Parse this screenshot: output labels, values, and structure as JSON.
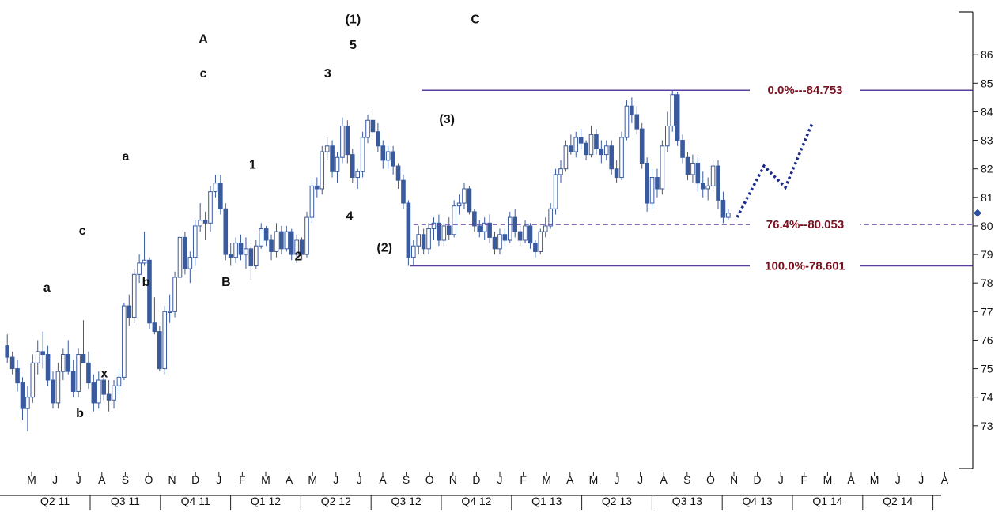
{
  "colors": {
    "candle": "#3a5a9e",
    "fib_line": "#5a3fa0",
    "fib_text": "#7a1020",
    "projection": "#1a2a8c",
    "axis": "#222222"
  },
  "chart_data": {
    "type": "candlestick",
    "title": "",
    "xlabel": "",
    "ylabel": "",
    "ylim": [
      71.5,
      87.5
    ],
    "y_ticks": [
      73,
      74,
      75,
      76,
      77,
      78,
      79,
      80,
      81,
      82,
      83,
      84,
      85,
      86
    ],
    "grid": false,
    "months": [
      "M",
      "J",
      "J",
      "A",
      "S",
      "O",
      "N",
      "D",
      "J",
      "F",
      "M",
      "A",
      "M",
      "J",
      "J",
      "A",
      "S",
      "O",
      "N",
      "D",
      "J",
      "F",
      "M",
      "A",
      "M",
      "J",
      "J",
      "A",
      "S",
      "O",
      "N",
      "D",
      "J",
      "F",
      "M",
      "A",
      "M",
      "J",
      "J",
      "A"
    ],
    "quarters": [
      "Q2 11",
      "Q3 11",
      "Q4 11",
      "Q1 12",
      "Q2 12",
      "Q3 12",
      "Q4 12",
      "Q1 13",
      "Q2 13",
      "Q3 13",
      "Q4 13",
      "Q1 14",
      "Q2 14"
    ],
    "quarter_month_span": [
      [
        0,
        2
      ],
      [
        3,
        5
      ],
      [
        6,
        8
      ],
      [
        9,
        11
      ],
      [
        12,
        14
      ],
      [
        15,
        17
      ],
      [
        18,
        20
      ],
      [
        21,
        23
      ],
      [
        24,
        26
      ],
      [
        27,
        29
      ],
      [
        30,
        32
      ],
      [
        33,
        35
      ],
      [
        36,
        38
      ]
    ],
    "last_value_marker": 80.45,
    "candles_weekly": [
      [
        75.8,
        76.2,
        75.2,
        75.4
      ],
      [
        75.4,
        75.6,
        74.8,
        75.0
      ],
      [
        75.0,
        75.3,
        74.2,
        74.5
      ],
      [
        74.5,
        74.7,
        73.2,
        73.6
      ],
      [
        73.6,
        74.4,
        72.8,
        74.0
      ],
      [
        74.0,
        75.5,
        73.8,
        75.2
      ],
      [
        75.2,
        76.0,
        74.8,
        75.6
      ],
      [
        75.6,
        76.3,
        75.0,
        75.5
      ],
      [
        75.5,
        75.8,
        74.4,
        74.6
      ],
      [
        74.6,
        74.9,
        73.6,
        73.8
      ],
      [
        73.8,
        75.2,
        73.6,
        74.9
      ],
      [
        74.9,
        75.7,
        74.6,
        75.5
      ],
      [
        75.5,
        76.0,
        74.8,
        74.9
      ],
      [
        74.9,
        75.3,
        74.0,
        74.2
      ],
      [
        74.2,
        75.7,
        74.0,
        75.5
      ],
      [
        75.5,
        76.7,
        75.3,
        75.2
      ],
      [
        75.2,
        75.6,
        74.3,
        74.5
      ],
      [
        74.5,
        74.8,
        73.5,
        73.8
      ],
      [
        73.8,
        74.9,
        73.6,
        74.6
      ],
      [
        74.6,
        74.8,
        73.9,
        74.1
      ],
      [
        74.1,
        74.6,
        73.5,
        73.9
      ],
      [
        73.9,
        74.6,
        73.6,
        74.4
      ],
      [
        74.4,
        75.0,
        74.1,
        74.7
      ],
      [
        74.7,
        77.3,
        74.6,
        77.2
      ],
      [
        77.2,
        77.6,
        76.5,
        76.8
      ],
      [
        76.8,
        78.5,
        76.6,
        78.3
      ],
      [
        78.3,
        79.0,
        78.0,
        78.7
      ],
      [
        78.7,
        79.8,
        78.6,
        78.8
      ],
      [
        78.8,
        78.9,
        76.4,
        76.6
      ],
      [
        76.6,
        77.5,
        76.2,
        76.3
      ],
      [
        76.3,
        76.5,
        74.9,
        75.0
      ],
      [
        75.0,
        77.2,
        74.8,
        77.0
      ],
      [
        77.0,
        77.6,
        76.6,
        77.0
      ],
      [
        77.0,
        78.4,
        76.8,
        78.2
      ],
      [
        78.2,
        79.8,
        78.0,
        79.6
      ],
      [
        79.6,
        79.8,
        78.3,
        78.5
      ],
      [
        78.5,
        79.1,
        78.0,
        78.9
      ],
      [
        78.9,
        80.2,
        78.6,
        80.0
      ],
      [
        80.0,
        80.8,
        79.8,
        80.2
      ],
      [
        80.2,
        80.5,
        79.5,
        80.1
      ],
      [
        80.1,
        81.4,
        79.8,
        81.2
      ],
      [
        81.2,
        81.8,
        81.0,
        81.5
      ],
      [
        81.5,
        81.8,
        80.4,
        80.6
      ],
      [
        80.6,
        80.8,
        78.8,
        79.0
      ],
      [
        79.0,
        79.4,
        78.6,
        78.9
      ],
      [
        78.9,
        79.6,
        78.7,
        79.4
      ],
      [
        79.4,
        79.7,
        78.8,
        79.0
      ],
      [
        79.0,
        79.6,
        78.5,
        79.2
      ],
      [
        79.2,
        79.3,
        78.1,
        78.6
      ],
      [
        78.6,
        79.5,
        78.5,
        79.3
      ],
      [
        79.3,
        80.1,
        79.2,
        79.9
      ],
      [
        79.9,
        80.0,
        79.3,
        79.5
      ],
      [
        79.5,
        79.7,
        78.8,
        79.1
      ],
      [
        79.1,
        80.1,
        78.9,
        79.8
      ],
      [
        79.8,
        80.0,
        79.0,
        79.2
      ],
      [
        79.2,
        80.0,
        79.1,
        79.8
      ],
      [
        79.8,
        79.9,
        78.8,
        79.0
      ],
      [
        79.0,
        79.7,
        78.7,
        79.5
      ],
      [
        79.5,
        79.6,
        78.8,
        79.0
      ],
      [
        79.0,
        80.5,
        78.9,
        80.3
      ],
      [
        80.3,
        81.6,
        80.1,
        81.4
      ],
      [
        81.4,
        81.7,
        81.0,
        81.3
      ],
      [
        81.3,
        82.8,
        81.1,
        82.6
      ],
      [
        82.6,
        83.1,
        82.3,
        82.8
      ],
      [
        82.8,
        83.0,
        81.7,
        81.9
      ],
      [
        81.9,
        82.6,
        81.5,
        82.4
      ],
      [
        82.4,
        83.8,
        82.2,
        83.5
      ],
      [
        83.5,
        83.7,
        82.2,
        82.5
      ],
      [
        82.5,
        82.7,
        81.5,
        81.7
      ],
      [
        81.7,
        82.0,
        81.3,
        81.9
      ],
      [
        81.9,
        83.3,
        81.7,
        83.1
      ],
      [
        83.1,
        83.9,
        82.9,
        83.7
      ],
      [
        83.7,
        84.1,
        83.0,
        83.3
      ],
      [
        83.3,
        83.6,
        82.6,
        82.8
      ],
      [
        82.8,
        83.0,
        82.0,
        82.3
      ],
      [
        82.3,
        82.8,
        82.0,
        82.6
      ],
      [
        82.6,
        82.8,
        81.8,
        82.1
      ],
      [
        82.1,
        82.2,
        81.3,
        81.6
      ],
      [
        81.6,
        81.8,
        80.6,
        80.8
      ],
      [
        80.8,
        80.9,
        78.6,
        78.9
      ],
      [
        78.9,
        79.5,
        78.6,
        79.3
      ],
      [
        79.3,
        80.0,
        79.0,
        79.7
      ],
      [
        79.7,
        79.9,
        79.0,
        79.2
      ],
      [
        79.2,
        80.1,
        79.0,
        79.9
      ],
      [
        79.9,
        80.3,
        79.5,
        80.1
      ],
      [
        80.1,
        80.4,
        79.3,
        79.5
      ],
      [
        79.5,
        80.1,
        79.3,
        80.0
      ],
      [
        80.0,
        80.3,
        79.5,
        79.7
      ],
      [
        79.7,
        80.9,
        79.6,
        80.7
      ],
      [
        80.7,
        81.1,
        80.4,
        80.8
      ],
      [
        80.8,
        81.5,
        80.6,
        81.3
      ],
      [
        81.3,
        81.4,
        80.4,
        80.5
      ],
      [
        80.5,
        80.6,
        79.8,
        80.0
      ],
      [
        80.0,
        80.2,
        79.6,
        79.8
      ],
      [
        79.8,
        80.3,
        79.5,
        80.1
      ],
      [
        80.1,
        80.4,
        79.4,
        79.6
      ],
      [
        79.6,
        79.8,
        79.0,
        79.2
      ],
      [
        79.2,
        79.9,
        79.0,
        79.7
      ],
      [
        79.7,
        79.9,
        79.3,
        79.5
      ],
      [
        79.5,
        80.5,
        79.4,
        80.3
      ],
      [
        80.3,
        80.6,
        79.6,
        79.8
      ],
      [
        79.8,
        80.0,
        79.3,
        79.5
      ],
      [
        79.5,
        80.2,
        79.4,
        80.0
      ],
      [
        80.0,
        80.1,
        79.2,
        79.4
      ],
      [
        79.4,
        79.5,
        78.9,
        79.1
      ],
      [
        79.1,
        79.9,
        79.0,
        79.8
      ],
      [
        79.8,
        80.3,
        79.6,
        80.0
      ],
      [
        80.0,
        80.8,
        79.9,
        80.6
      ],
      [
        80.6,
        82.0,
        80.4,
        81.8
      ],
      [
        81.8,
        82.3,
        81.5,
        82.0
      ],
      [
        82.0,
        83.0,
        81.9,
        82.8
      ],
      [
        82.8,
        83.2,
        82.5,
        82.6
      ],
      [
        82.6,
        83.3,
        82.4,
        83.1
      ],
      [
        83.1,
        83.4,
        82.7,
        82.9
      ],
      [
        82.9,
        83.0,
        82.3,
        82.5
      ],
      [
        82.5,
        83.5,
        82.4,
        83.2
      ],
      [
        83.2,
        83.4,
        82.5,
        82.7
      ],
      [
        82.7,
        83.0,
        82.2,
        82.5
      ],
      [
        82.5,
        83.0,
        82.3,
        82.8
      ],
      [
        82.8,
        83.0,
        81.8,
        82.0
      ],
      [
        82.0,
        82.3,
        81.5,
        81.7
      ],
      [
        81.7,
        83.3,
        81.6,
        83.1
      ],
      [
        83.1,
        84.4,
        83.0,
        84.2
      ],
      [
        84.2,
        84.5,
        83.6,
        83.9
      ],
      [
        83.9,
        84.2,
        83.2,
        83.4
      ],
      [
        83.4,
        83.6,
        82.0,
        82.2
      ],
      [
        82.2,
        82.4,
        80.5,
        80.8
      ],
      [
        80.8,
        82.0,
        80.6,
        81.7
      ],
      [
        81.7,
        82.0,
        81.0,
        81.3
      ],
      [
        81.3,
        83.0,
        81.1,
        82.8
      ],
      [
        82.8,
        84.0,
        82.6,
        83.5
      ],
      [
        83.5,
        84.753,
        83.3,
        84.6
      ],
      [
        84.6,
        84.7,
        82.8,
        83.0
      ],
      [
        83.0,
        83.2,
        82.2,
        82.4
      ],
      [
        82.4,
        82.6,
        81.6,
        81.8
      ],
      [
        81.8,
        82.5,
        81.5,
        82.2
      ],
      [
        82.2,
        82.4,
        81.2,
        81.5
      ],
      [
        81.5,
        81.9,
        81.0,
        81.3
      ],
      [
        81.3,
        81.7,
        80.9,
        81.4
      ],
      [
        81.4,
        82.3,
        81.2,
        82.1
      ],
      [
        82.1,
        82.3,
        80.6,
        80.9
      ],
      [
        80.9,
        81.2,
        80.1,
        80.3
      ],
      [
        80.3,
        80.6,
        80.2,
        80.45
      ]
    ],
    "projection": [
      [
        80.3,
        80.3
      ],
      [
        80.7,
        82.1
      ],
      [
        81.0,
        81.4
      ],
      [
        81.2,
        83.6
      ]
    ],
    "fib_levels": [
      {
        "pct": "0.0%",
        "value": "84.753",
        "level": 84.753,
        "style": "solid",
        "text": "0.0%---84.753"
      },
      {
        "pct": "76.4%",
        "value": "80.053",
        "level": 80.053,
        "style": "dashed",
        "text": "76.4%--80.053"
      },
      {
        "pct": "100.0%",
        "value": "78.601",
        "level": 78.601,
        "style": "solid",
        "text": "100.0%-78.601"
      }
    ],
    "wave_labels": [
      {
        "text": "a",
        "t": 7.8,
        "v": 77.7
      },
      {
        "text": "c",
        "t": 14.8,
        "v": 79.7
      },
      {
        "text": "b",
        "t": 14.3,
        "v": 73.3
      },
      {
        "text": "x",
        "t": 19.1,
        "v": 74.7
      },
      {
        "text": "a",
        "t": 23.3,
        "v": 82.3
      },
      {
        "text": "b",
        "t": 27.3,
        "v": 77.9
      },
      {
        "text": "A",
        "t": 38.6,
        "v": 86.4
      },
      {
        "text": "c",
        "t": 38.6,
        "v": 85.2
      },
      {
        "text": "B",
        "t": 43.1,
        "v": 77.9
      },
      {
        "text": "1",
        "t": 48.3,
        "v": 82.0
      },
      {
        "text": "2",
        "t": 57.3,
        "v": 78.8
      },
      {
        "text": "3",
        "t": 63.1,
        "v": 85.2
      },
      {
        "text": "(1)",
        "t": 68.1,
        "v": 87.1
      },
      {
        "text": "5",
        "t": 68.1,
        "v": 86.2
      },
      {
        "text": "4",
        "t": 67.4,
        "v": 80.2
      },
      {
        "text": "(2)",
        "t": 74.3,
        "v": 79.1
      },
      {
        "text": "(3)",
        "t": 86.6,
        "v": 83.6
      },
      {
        "text": "C",
        "t": 92.2,
        "v": 87.1
      }
    ]
  }
}
